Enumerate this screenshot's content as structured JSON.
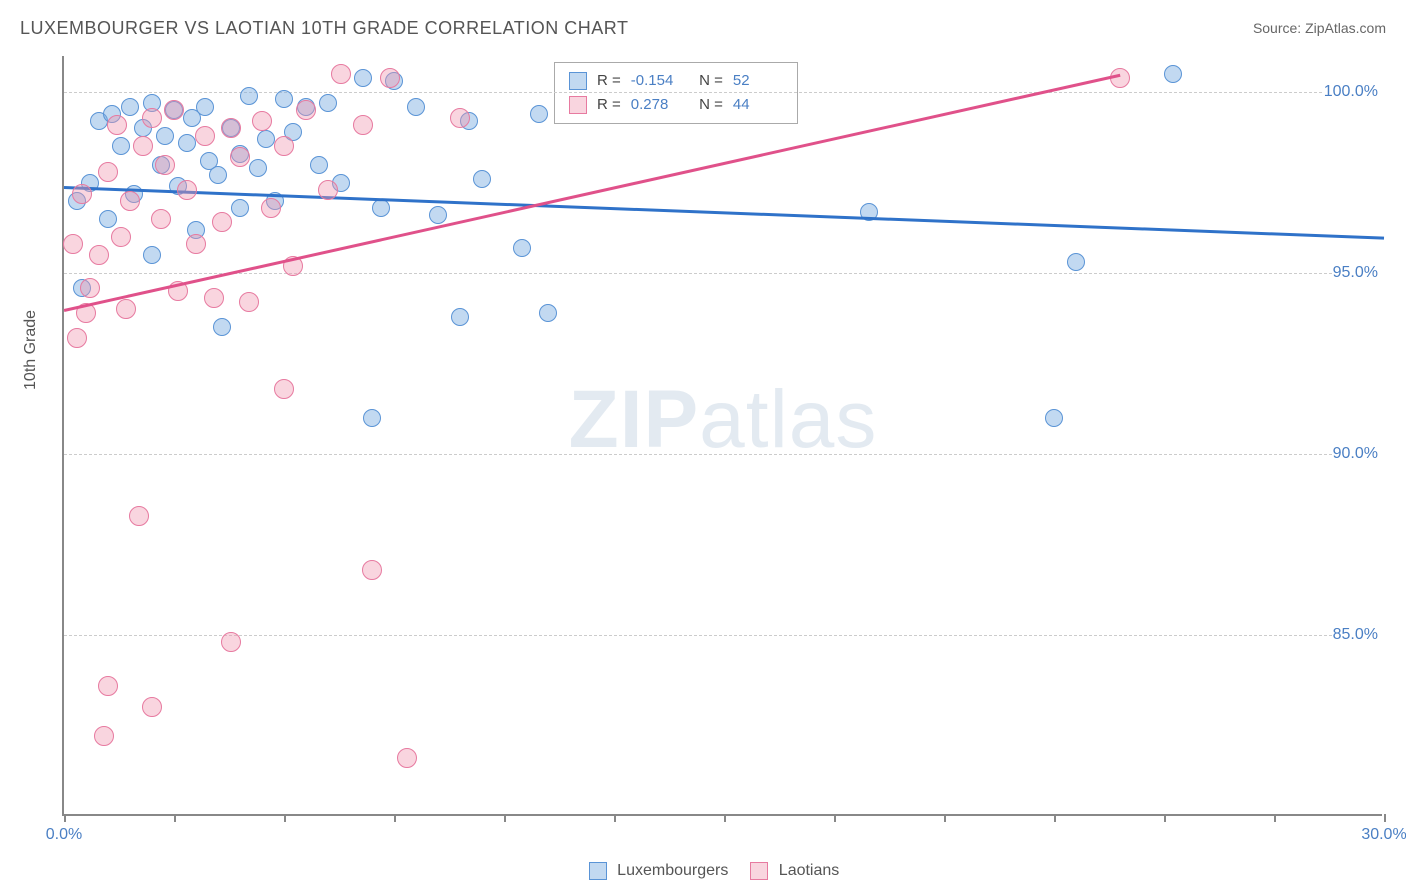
{
  "title": "LUXEMBOURGER VS LAOTIAN 10TH GRADE CORRELATION CHART",
  "source": "Source: ZipAtlas.com",
  "watermark_a": "ZIP",
  "watermark_b": "atlas",
  "ylabel": "10th Grade",
  "chart": {
    "type": "scatter",
    "xlim": [
      0,
      30
    ],
    "ylim": [
      80,
      101
    ],
    "xticks": [
      0,
      2.5,
      5,
      7.5,
      10,
      12.5,
      15,
      17.5,
      20,
      22.5,
      25,
      27.5,
      30
    ],
    "xtick_labels": {
      "0": "0.0%",
      "30": "30.0%"
    },
    "yticks": [
      85,
      90,
      95,
      100
    ],
    "ytick_labels": [
      "85.0%",
      "90.0%",
      "95.0%",
      "100.0%"
    ],
    "background_color": "#ffffff",
    "grid_color": "#cccccc",
    "axis_color": "#888888",
    "series": [
      {
        "name": "Luxembourgers",
        "fill": "rgba(120,170,225,0.45)",
        "stroke": "#5a94d6",
        "trend_color": "#2f72c9",
        "R": "-0.154",
        "N": "52",
        "marker_r": 9,
        "trend": {
          "x1": 0,
          "y1": 97.4,
          "x2": 30,
          "y2": 96.0
        },
        "points": [
          [
            0.3,
            97.0
          ],
          [
            0.4,
            94.6
          ],
          [
            0.6,
            97.5
          ],
          [
            0.8,
            99.2
          ],
          [
            1.0,
            96.5
          ],
          [
            1.1,
            99.4
          ],
          [
            1.3,
            98.5
          ],
          [
            1.5,
            99.6
          ],
          [
            1.6,
            97.2
          ],
          [
            1.8,
            99.0
          ],
          [
            2.0,
            95.5
          ],
          [
            2.0,
            99.7
          ],
          [
            2.2,
            98.0
          ],
          [
            2.3,
            98.8
          ],
          [
            2.5,
            99.5
          ],
          [
            2.6,
            97.4
          ],
          [
            2.8,
            98.6
          ],
          [
            2.9,
            99.3
          ],
          [
            3.0,
            96.2
          ],
          [
            3.2,
            99.6
          ],
          [
            3.3,
            98.1
          ],
          [
            3.5,
            97.7
          ],
          [
            3.6,
            93.5
          ],
          [
            3.8,
            99.0
          ],
          [
            4.0,
            98.3
          ],
          [
            4.0,
            96.8
          ],
          [
            4.2,
            99.9
          ],
          [
            4.4,
            97.9
          ],
          [
            4.6,
            98.7
          ],
          [
            4.8,
            97.0
          ],
          [
            5.0,
            99.8
          ],
          [
            5.2,
            98.9
          ],
          [
            5.5,
            99.6
          ],
          [
            5.8,
            98.0
          ],
          [
            6.0,
            99.7
          ],
          [
            6.3,
            97.5
          ],
          [
            6.8,
            100.4
          ],
          [
            7.0,
            91.0
          ],
          [
            7.2,
            96.8
          ],
          [
            7.5,
            100.3
          ],
          [
            8.0,
            99.6
          ],
          [
            8.5,
            96.6
          ],
          [
            9.0,
            93.8
          ],
          [
            9.2,
            99.2
          ],
          [
            9.5,
            97.6
          ],
          [
            10.4,
            95.7
          ],
          [
            10.8,
            99.4
          ],
          [
            11.0,
            93.9
          ],
          [
            18.3,
            96.7
          ],
          [
            22.5,
            91.0
          ],
          [
            23.0,
            95.3
          ],
          [
            25.2,
            100.5
          ]
        ]
      },
      {
        "name": "Laotians",
        "fill": "rgba(240,150,175,0.40)",
        "stroke": "#e77aa0",
        "trend_color": "#e0518a",
        "R": "0.278",
        "N": "44",
        "marker_r": 10,
        "trend": {
          "x1": 0,
          "y1": 94.0,
          "x2": 24.0,
          "y2": 100.5
        },
        "points": [
          [
            0.2,
            95.8
          ],
          [
            0.3,
            93.2
          ],
          [
            0.4,
            97.2
          ],
          [
            0.5,
            93.9
          ],
          [
            0.6,
            94.6
          ],
          [
            0.8,
            95.5
          ],
          [
            0.9,
            82.2
          ],
          [
            1.0,
            97.8
          ],
          [
            1.0,
            83.6
          ],
          [
            1.2,
            99.1
          ],
          [
            1.3,
            96.0
          ],
          [
            1.4,
            94.0
          ],
          [
            1.5,
            97.0
          ],
          [
            1.7,
            88.3
          ],
          [
            1.8,
            98.5
          ],
          [
            2.0,
            99.3
          ],
          [
            2.0,
            83.0
          ],
          [
            2.2,
            96.5
          ],
          [
            2.3,
            98.0
          ],
          [
            2.5,
            99.5
          ],
          [
            2.6,
            94.5
          ],
          [
            2.8,
            97.3
          ],
          [
            3.0,
            95.8
          ],
          [
            3.2,
            98.8
          ],
          [
            3.4,
            94.3
          ],
          [
            3.6,
            96.4
          ],
          [
            3.8,
            99.0
          ],
          [
            3.8,
            84.8
          ],
          [
            4.0,
            98.2
          ],
          [
            4.2,
            94.2
          ],
          [
            4.5,
            99.2
          ],
          [
            4.7,
            96.8
          ],
          [
            5.0,
            98.5
          ],
          [
            5.0,
            91.8
          ],
          [
            5.2,
            95.2
          ],
          [
            5.5,
            99.5
          ],
          [
            6.0,
            97.3
          ],
          [
            6.3,
            100.5
          ],
          [
            6.8,
            99.1
          ],
          [
            7.0,
            86.8
          ],
          [
            7.4,
            100.4
          ],
          [
            7.8,
            81.6
          ],
          [
            9.0,
            99.3
          ],
          [
            24.0,
            100.4
          ]
        ]
      }
    ]
  },
  "legend_bottom": [
    {
      "label": "Luxembourgers",
      "fill": "rgba(120,170,225,0.45)",
      "stroke": "#5a94d6"
    },
    {
      "label": "Laotians",
      "fill": "rgba(240,150,175,0.40)",
      "stroke": "#e77aa0"
    }
  ]
}
